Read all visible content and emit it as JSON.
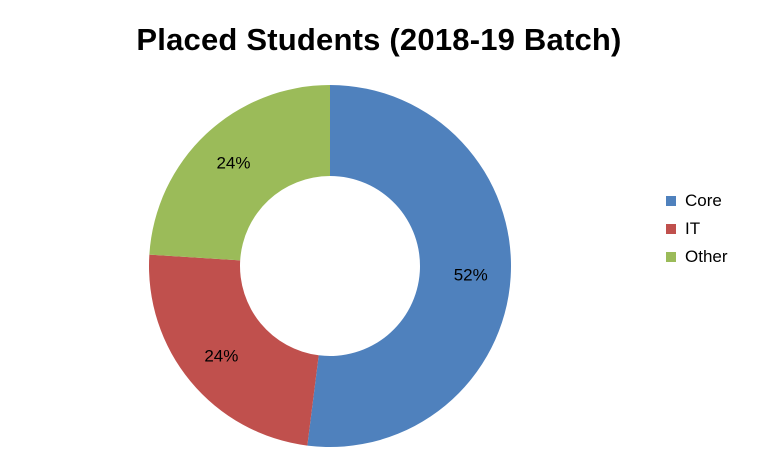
{
  "chart_data": {
    "type": "pie",
    "variant": "donut",
    "title": "Placed Students (2018-19 Batch)",
    "categories": [
      "Core",
      "IT",
      "Other"
    ],
    "values": [
      52,
      24,
      24
    ],
    "labels": [
      "52%",
      "24%",
      "24%"
    ],
    "colors": [
      "#4F81BD",
      "#C0504D",
      "#9BBB59"
    ],
    "legend_position": "right"
  }
}
